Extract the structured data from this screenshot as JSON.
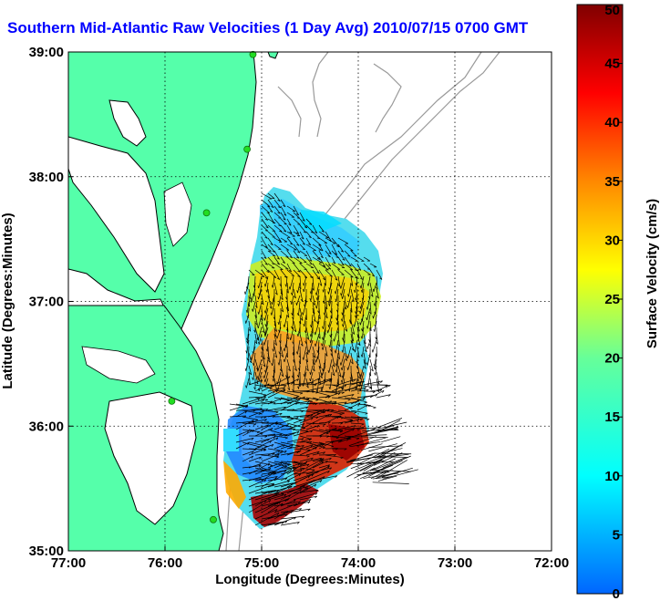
{
  "title": "Southern Mid-Atlantic Raw Velocities (1 Day Avg) 2010/07/15 0700 GMT",
  "colors": {
    "land": "#55ffaa",
    "coast": "#000000",
    "bathy": "#999999",
    "station": "#22dd22",
    "arrows": "#000000"
  },
  "chart_data": {
    "type": "heatmap",
    "title": "Southern Mid-Atlantic Raw Velocities (1 Day Avg) 2010/07/15 0700 GMT",
    "xlabel": "Longitude (Degrees:Minutes)",
    "ylabel": "Latitude (Degrees:Minutes)",
    "xlim": [
      -77,
      -72
    ],
    "ylim": [
      35,
      39
    ],
    "xticks": [
      -77,
      -76,
      -75,
      -74,
      -73,
      -72
    ],
    "yticks": [
      35,
      36,
      37,
      38,
      39
    ],
    "xtick_labels": [
      "77:00",
      "76:00",
      "75:00",
      "74:00",
      "73:00",
      "72:00"
    ],
    "ytick_labels": [
      "35:00",
      "36:00",
      "37:00",
      "38:00",
      "39:00"
    ],
    "grid": true,
    "colorbar": {
      "label": "Surface Velocity (cm/s)",
      "min": 0,
      "max": 50,
      "ticks": [
        0,
        5,
        10,
        15,
        20,
        25,
        30,
        35,
        40,
        45,
        50
      ],
      "colormap": "jet"
    },
    "stations": [
      {
        "lon": -75.09,
        "lat": 38.98
      },
      {
        "lon": -75.15,
        "lat": 38.22
      },
      {
        "lon": -75.57,
        "lat": 37.71
      },
      {
        "lon": -75.93,
        "lat": 36.2
      },
      {
        "lon": -75.5,
        "lat": 35.25
      }
    ],
    "velocity_field": {
      "units": "cm/s",
      "approximate_regions": [
        {
          "lon": [
            -75.0,
            -74.2
          ],
          "lat": [
            36.8,
            37.1
          ],
          "speed": 25
        },
        {
          "lon": [
            -75.1,
            -74.3
          ],
          "lat": [
            37.2,
            37.6
          ],
          "speed": 14
        },
        {
          "lon": [
            -75.4,
            -74.6
          ],
          "lat": [
            35.7,
            36.1
          ],
          "speed": 6
        },
        {
          "lon": [
            -74.5,
            -74.0
          ],
          "lat": [
            35.5,
            36.3
          ],
          "speed": 38
        },
        {
          "lon": [
            -75.1,
            -74.5
          ],
          "lat": [
            35.15,
            35.5
          ],
          "speed": 44
        }
      ]
    }
  }
}
